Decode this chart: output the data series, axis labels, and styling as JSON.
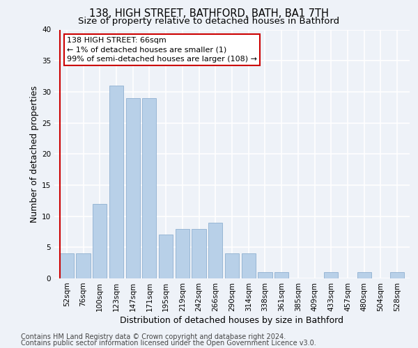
{
  "title": "138, HIGH STREET, BATHFORD, BATH, BA1 7TH",
  "subtitle": "Size of property relative to detached houses in Bathford",
  "xlabel": "Distribution of detached houses by size in Bathford",
  "ylabel": "Number of detached properties",
  "categories": [
    "52sqm",
    "76sqm",
    "100sqm",
    "123sqm",
    "147sqm",
    "171sqm",
    "195sqm",
    "219sqm",
    "242sqm",
    "266sqm",
    "290sqm",
    "314sqm",
    "338sqm",
    "361sqm",
    "385sqm",
    "409sqm",
    "433sqm",
    "457sqm",
    "480sqm",
    "504sqm",
    "528sqm"
  ],
  "values": [
    4,
    4,
    12,
    31,
    29,
    29,
    7,
    8,
    8,
    9,
    4,
    4,
    1,
    1,
    0,
    0,
    1,
    0,
    1,
    0,
    1
  ],
  "bar_color": "#b8d0e8",
  "bar_edge_color": "#8fb0d0",
  "annotation_line1": "138 HIGH STREET: 66sqm",
  "annotation_line2": "← 1% of detached houses are smaller (1)",
  "annotation_line3": "99% of semi-detached houses are larger (108) →",
  "annotation_box_color": "#cc0000",
  "ylim": [
    0,
    40
  ],
  "yticks": [
    0,
    5,
    10,
    15,
    20,
    25,
    30,
    35,
    40
  ],
  "footer_line1": "Contains HM Land Registry data © Crown copyright and database right 2024.",
  "footer_line2": "Contains public sector information licensed under the Open Government Licence v3.0.",
  "bg_color": "#eef2f8",
  "grid_color": "#ffffff",
  "title_fontsize": 10.5,
  "subtitle_fontsize": 9.5,
  "axis_label_fontsize": 9,
  "tick_fontsize": 7.5,
  "annotation_fontsize": 8,
  "footer_fontsize": 7
}
